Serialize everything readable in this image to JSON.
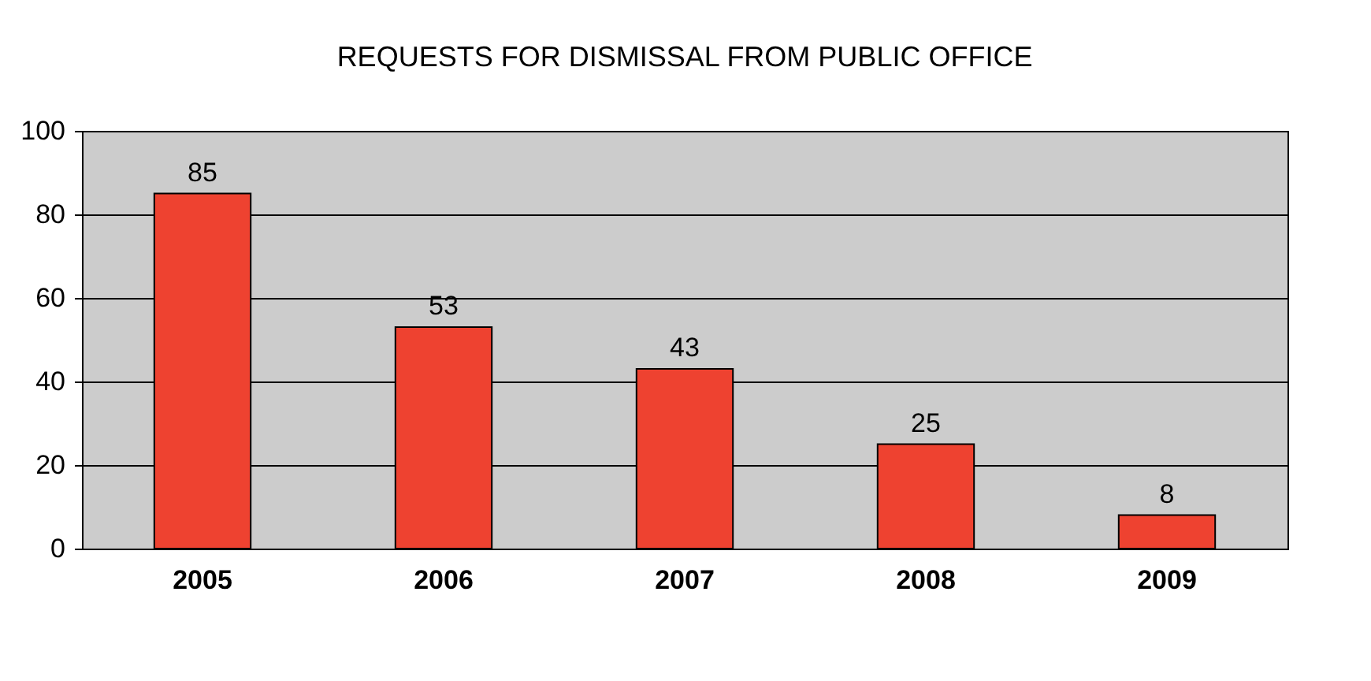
{
  "chart_data": {
    "type": "bar",
    "title": "REQUESTS FOR DISMISSAL FROM PUBLIC OFFICE",
    "categories": [
      "2005",
      "2006",
      "2007",
      "2008",
      "2009"
    ],
    "values": [
      85,
      53,
      43,
      25,
      8
    ],
    "color": "#ee4230",
    "ylim": [
      0,
      100
    ],
    "yticks": [
      0,
      20,
      40,
      60,
      80,
      100
    ],
    "grid": "y",
    "data_labels": true
  }
}
